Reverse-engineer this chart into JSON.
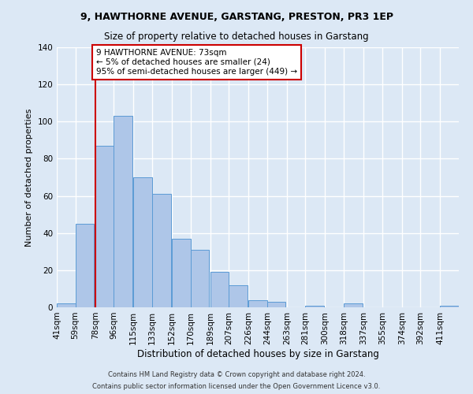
{
  "title1": "9, HAWTHORNE AVENUE, GARSTANG, PRESTON, PR3 1EP",
  "title2": "Size of property relative to detached houses in Garstang",
  "xlabel": "Distribution of detached houses by size in Garstang",
  "ylabel": "Number of detached properties",
  "bar_labels": [
    "41sqm",
    "59sqm",
    "78sqm",
    "96sqm",
    "115sqm",
    "133sqm",
    "152sqm",
    "170sqm",
    "189sqm",
    "207sqm",
    "226sqm",
    "244sqm",
    "263sqm",
    "281sqm",
    "300sqm",
    "318sqm",
    "337sqm",
    "355sqm",
    "374sqm",
    "392sqm",
    "411sqm"
  ],
  "bar_values": [
    2,
    45,
    87,
    103,
    70,
    61,
    37,
    31,
    19,
    12,
    4,
    3,
    0,
    1,
    0,
    2,
    0,
    0,
    0,
    0,
    1
  ],
  "bar_color": "#aec6e8",
  "bar_edge_color": "#5b9bd5",
  "ylim": [
    0,
    140
  ],
  "yticks": [
    0,
    20,
    40,
    60,
    80,
    100,
    120,
    140
  ],
  "property_line_x_label": "78sqm",
  "property_line_color": "#cc0000",
  "annotation_text": "9 HAWTHORNE AVENUE: 73sqm\n← 5% of detached houses are smaller (24)\n95% of semi-detached houses are larger (449) →",
  "annotation_box_color": "#ffffff",
  "annotation_box_edge": "#cc0000",
  "footer1": "Contains HM Land Registry data © Crown copyright and database right 2024.",
  "footer2": "Contains public sector information licensed under the Open Government Licence v3.0.",
  "background_color": "#dce8f5",
  "grid_color": "#ffffff",
  "bin_width": 18
}
